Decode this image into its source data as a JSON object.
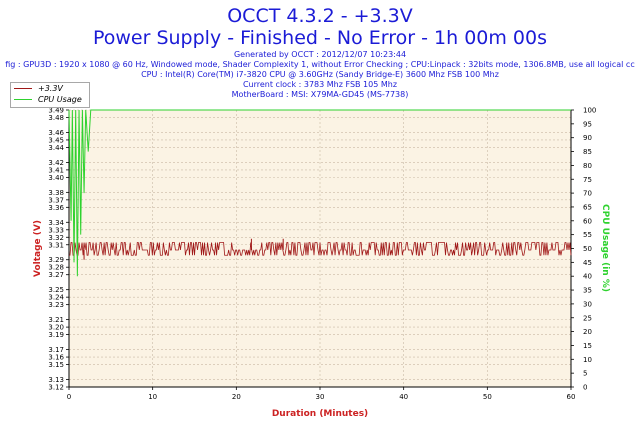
{
  "header": {
    "title_line1": "OCCT 4.3.2 - +3.3V",
    "title_line2": "Power Supply - Finished - No Error - 1h 00m 00s",
    "generated": "Generated by OCCT : 2012/12/07 10:23:44",
    "config": "fig : GPU3D : 1920 x 1080 @ 60 Hz, Windowed mode, Shader Complexity 1, without Error Checking ; CPU:Linpack : 32bits mode, 1306.8MB, use all logical cc",
    "cpu": "CPU : Intel(R) Core(TM) i7-3820 CPU @ 3.60GHz (Sandy Bridge-E) 3600 Mhz FSB 100 Mhz",
    "clock": "Current clock : 3783 Mhz FSB 105 Mhz",
    "motherboard": "MotherBoard : MSI: X79MA-GD45 (MS-7738)"
  },
  "colors": {
    "voltage": "#a01818",
    "cpu": "#2ed22e",
    "plot_bg": "#fbf3e4",
    "grid": "#c9b9a4",
    "axis_label": "#cc2222",
    "text": "#1b1bd6"
  },
  "chart_data": {
    "type": "line",
    "xlabel": "Duration (Minutes)",
    "ylabel": "Voltage (V)",
    "y2label": "CPU Usage (in %)",
    "xlim": [
      0,
      60
    ],
    "ylim": [
      3.12,
      3.49
    ],
    "y2lim": [
      0,
      100
    ],
    "x_ticks": [
      0,
      10,
      20,
      30,
      40,
      50,
      60
    ],
    "y_ticks": [
      3.12,
      3.13,
      3.15,
      3.16,
      3.17,
      3.19,
      3.2,
      3.21,
      3.23,
      3.24,
      3.25,
      3.27,
      3.28,
      3.29,
      3.31,
      3.32,
      3.33,
      3.34,
      3.36,
      3.37,
      3.38,
      3.4,
      3.41,
      3.42,
      3.44,
      3.45,
      3.46,
      3.48,
      3.49
    ],
    "y_tick_labels": [
      "3.12",
      "3.13",
      "3.15",
      "3.16",
      "3.17",
      "3.19",
      "3.20",
      "3.21",
      "3.23",
      "3.24",
      "3.25",
      "3.27",
      "3.28",
      "3.29",
      "3.31",
      "3.32",
      "3.33",
      "3.34",
      "3.36",
      "3.37",
      "3.38",
      "3.40",
      "3.41",
      "3.42",
      "3.44",
      "3.45",
      "3.46",
      "3.48",
      "3.49"
    ],
    "y2_ticks": [
      0,
      5,
      10,
      15,
      20,
      25,
      30,
      35,
      40,
      45,
      50,
      55,
      60,
      65,
      70,
      75,
      80,
      85,
      90,
      95,
      100
    ],
    "grid": true,
    "legend_position": "top-left",
    "series": [
      {
        "name": "+3.3V",
        "axis": "left",
        "base": 3.303,
        "high": 3.313,
        "low": 3.296,
        "spikes": [
          {
            "x": 1.8,
            "y": 3.29
          },
          {
            "x": 21.8,
            "y": 3.318
          },
          {
            "x": 25.6,
            "y": 3.318
          }
        ]
      },
      {
        "name": "CPU Usage",
        "axis": "right",
        "points": [
          [
            0.0,
            100
          ],
          [
            0.25,
            60
          ],
          [
            0.4,
            100
          ],
          [
            0.6,
            45
          ],
          [
            0.8,
            100
          ],
          [
            1.0,
            40
          ],
          [
            1.2,
            100
          ],
          [
            1.4,
            55
          ],
          [
            1.6,
            100
          ],
          [
            1.8,
            70
          ],
          [
            2.0,
            100
          ],
          [
            2.3,
            85
          ],
          [
            2.6,
            100
          ],
          [
            60,
            100
          ]
        ]
      }
    ]
  },
  "legend": {
    "items": [
      {
        "label": "+3.3V",
        "color": "#a01818"
      },
      {
        "label": "CPU Usage",
        "color": "#2ed22e"
      }
    ]
  }
}
